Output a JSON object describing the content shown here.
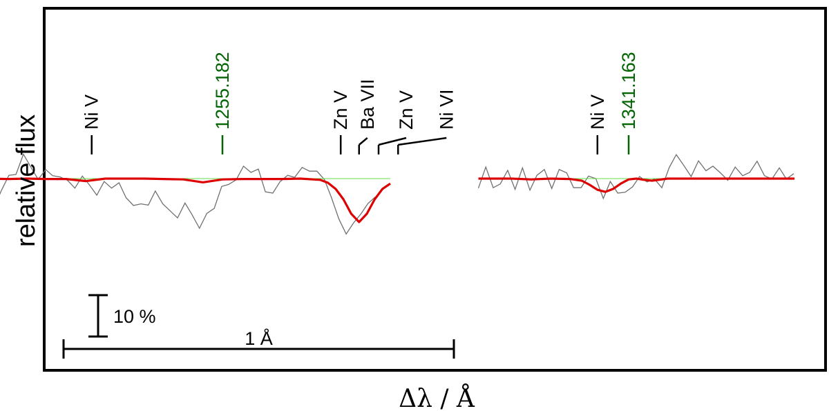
{
  "chart_data": {
    "type": "line",
    "xlabel": "Δλ / Å",
    "ylabel": "relative flux",
    "colors": {
      "observed": "#707070",
      "model": "#dd0000",
      "model_line": "#66dd44",
      "line_id": "#000000",
      "line_id_highlight": "#006400"
    },
    "scale_bars": {
      "flux_label": "10 %",
      "flux_value": 0.1,
      "wavelength_label": "1 Å",
      "wavelength_value": 1.0
    },
    "panels": [
      {
        "name": "panel-1255",
        "line_ids": [
          {
            "label": "Ni V",
            "dx": -0.735,
            "highlight": false
          },
          {
            "label": "1255.182",
            "dx": -0.4,
            "highlight": true
          },
          {
            "label": "Zn V",
            "dx": -0.097,
            "highlight": false
          },
          {
            "label": "Ba VII",
            "dx": -0.05,
            "highlight": false
          },
          {
            "label": "Zn V",
            "dx": 0.0,
            "highlight": false
          },
          {
            "label": "Ni VI",
            "dx": 0.05,
            "highlight": false
          }
        ],
        "observed": {
          "dx": [
            -1.06,
            -1.041,
            -1.023,
            -1.004,
            -0.985,
            -0.966,
            -0.947,
            -0.929,
            -0.91,
            -0.891,
            -0.872,
            -0.853,
            -0.835,
            -0.816,
            -0.797,
            -0.778,
            -0.759,
            -0.741,
            -0.722,
            -0.703,
            -0.684,
            -0.665,
            -0.647,
            -0.628,
            -0.609,
            -0.59,
            -0.572,
            -0.553,
            -0.534,
            -0.515,
            -0.496,
            -0.478,
            -0.459,
            -0.44,
            -0.421,
            -0.402,
            -0.384,
            -0.365,
            -0.346,
            -0.327,
            -0.308,
            -0.29,
            -0.271,
            -0.252,
            -0.233,
            -0.215,
            -0.196,
            -0.177,
            -0.158,
            -0.139,
            -0.121,
            -0.102,
            -0.083,
            -0.064,
            -0.045,
            -0.027,
            -0.008
          ],
          "flux": [
            0.98,
            0.988,
            0.993,
            0.955,
            0.93,
            0.972,
            1.008,
            1.01,
            1.059,
            1.028,
            0.998,
            1.022,
            1.007,
            1.004,
            0.996,
            0.977,
            1.006,
            0.985,
            0.96,
            0.993,
            0.977,
            0.99,
            0.954,
            0.935,
            0.939,
            0.936,
            0.97,
            0.939,
            0.922,
            0.905,
            0.941,
            0.913,
            0.88,
            0.916,
            0.928,
            0.981,
            0.986,
            0.997,
            1.03,
            1.015,
            1.023,
            0.968,
            0.965,
            0.993,
            1.008,
            1.003,
            1.027,
            1.018,
            1.018,
            0.998,
            0.955,
            0.903,
            0.866,
            0.893,
            0.915,
            0.94,
            0.956
          ]
        },
        "model": {
          "dx": [
            -1.058,
            -1.0,
            -0.95,
            -0.9,
            -0.85,
            -0.8,
            -0.75,
            -0.7,
            -0.65,
            -0.6,
            -0.55,
            -0.5,
            -0.45,
            -0.4,
            -0.35,
            -0.3,
            -0.25,
            -0.2,
            -0.15,
            -0.13,
            -0.11,
            -0.09,
            -0.07,
            -0.05,
            -0.03,
            -0.01,
            0.01,
            0.03
          ],
          "flux": [
            1.0,
            1.0,
            0.999,
            1.0,
            0.999,
            0.999,
            0.994,
            1.0,
            1.0,
            1.0,
            0.999,
            0.998,
            0.991,
            0.998,
            0.999,
            0.999,
            0.999,
            1.0,
            0.997,
            0.99,
            0.975,
            0.95,
            0.915,
            0.895,
            0.915,
            0.95,
            0.975,
            0.988
          ]
        }
      },
      {
        "name": "panel-1341",
        "line_ids": [
          {
            "label": "Ni V",
            "dx": -0.08,
            "highlight": false
          },
          {
            "label": "1341.163",
            "dx": 0.0,
            "highlight": true
          }
        ],
        "observed": {
          "dx": [
            -0.385,
            -0.366,
            -0.347,
            -0.329,
            -0.31,
            -0.291,
            -0.272,
            -0.253,
            -0.235,
            -0.216,
            -0.197,
            -0.178,
            -0.159,
            -0.141,
            -0.122,
            -0.103,
            -0.084,
            -0.065,
            -0.047,
            -0.028,
            -0.009,
            0.01,
            0.028,
            0.047,
            0.066,
            0.085,
            0.104,
            0.122,
            0.141,
            0.16,
            0.179,
            0.198,
            0.216,
            0.235,
            0.254,
            0.273,
            0.292,
            0.31,
            0.329,
            0.348,
            0.367,
            0.386,
            0.404,
            0.423
          ],
          "flux": [
            0.977,
            1.028,
            0.978,
            0.987,
            1.02,
            0.974,
            1.026,
            0.972,
            1.008,
            1.022,
            0.976,
            1.022,
            1.014,
            0.978,
            0.978,
            1.006,
            1.0,
            0.952,
            0.993,
            0.965,
            0.967,
            0.98,
            1.005,
            0.992,
            0.999,
            0.978,
            1.027,
            1.058,
            1.032,
            1.005,
            1.043,
            1.019,
            1.03,
            1.014,
            0.996,
            1.028,
            1.007,
            1.015,
            1.042,
            1.007,
            0.999,
            1.026,
            0.999,
            1.012
          ]
        },
        "model": {
          "dx": [
            -0.385,
            -0.3,
            -0.25,
            -0.2,
            -0.15,
            -0.12,
            -0.1,
            -0.08,
            -0.06,
            -0.04,
            -0.02,
            0.0,
            0.02,
            0.04,
            0.06,
            0.1,
            0.15,
            0.2,
            0.3,
            0.425
          ],
          "flux": [
            1.0,
            1.0,
            0.998,
            1.0,
            0.999,
            0.995,
            0.985,
            0.973,
            0.968,
            0.975,
            0.988,
            0.998,
            1.0,
            0.997,
            0.995,
            1.0,
            1.0,
            1.0,
            1.0,
            1.0
          ]
        }
      }
    ]
  }
}
